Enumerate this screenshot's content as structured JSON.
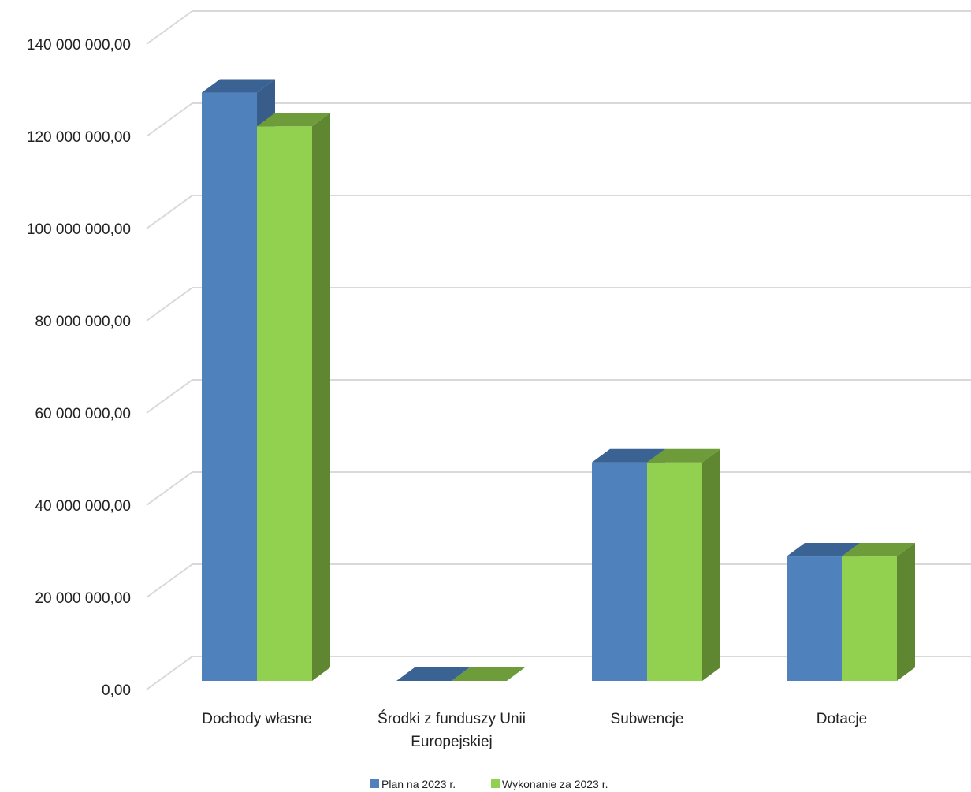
{
  "chart_data": {
    "type": "bar",
    "style": "3d-clustered-column",
    "categories": [
      [
        "Dochody własne"
      ],
      [
        "Środki z funduszy Unii",
        "Europejskiej"
      ],
      [
        "Subwencje"
      ],
      [
        "Dotacje"
      ]
    ],
    "series": [
      {
        "name": "Plan na 2023 r.",
        "color": "#4f81bd",
        "side_color": "#385d8a",
        "top_color": "#3a6293",
        "values": [
          127600000,
          0,
          47400000,
          27000000
        ]
      },
      {
        "name": "Wykonanie za 2023 r.",
        "color": "#92d050",
        "side_color": "#5f8731",
        "top_color": "#6e9c3a",
        "values": [
          120300000,
          0,
          47400000,
          27000000
        ]
      }
    ],
    "y_ticks": [
      0,
      20000000,
      40000000,
      60000000,
      80000000,
      100000000,
      120000000,
      140000000
    ],
    "y_tick_labels": [
      "0,00",
      "20 000 000,00",
      "40 000 000,00",
      "60 000 000,00",
      "80 000 000,00",
      "100 000 000,00",
      "120 000 000,00",
      "140 000 000,00"
    ],
    "ylim": [
      0,
      140000000
    ],
    "grid": true,
    "legend_position": "bottom",
    "title": "",
    "xlabel": "",
    "ylabel": ""
  }
}
